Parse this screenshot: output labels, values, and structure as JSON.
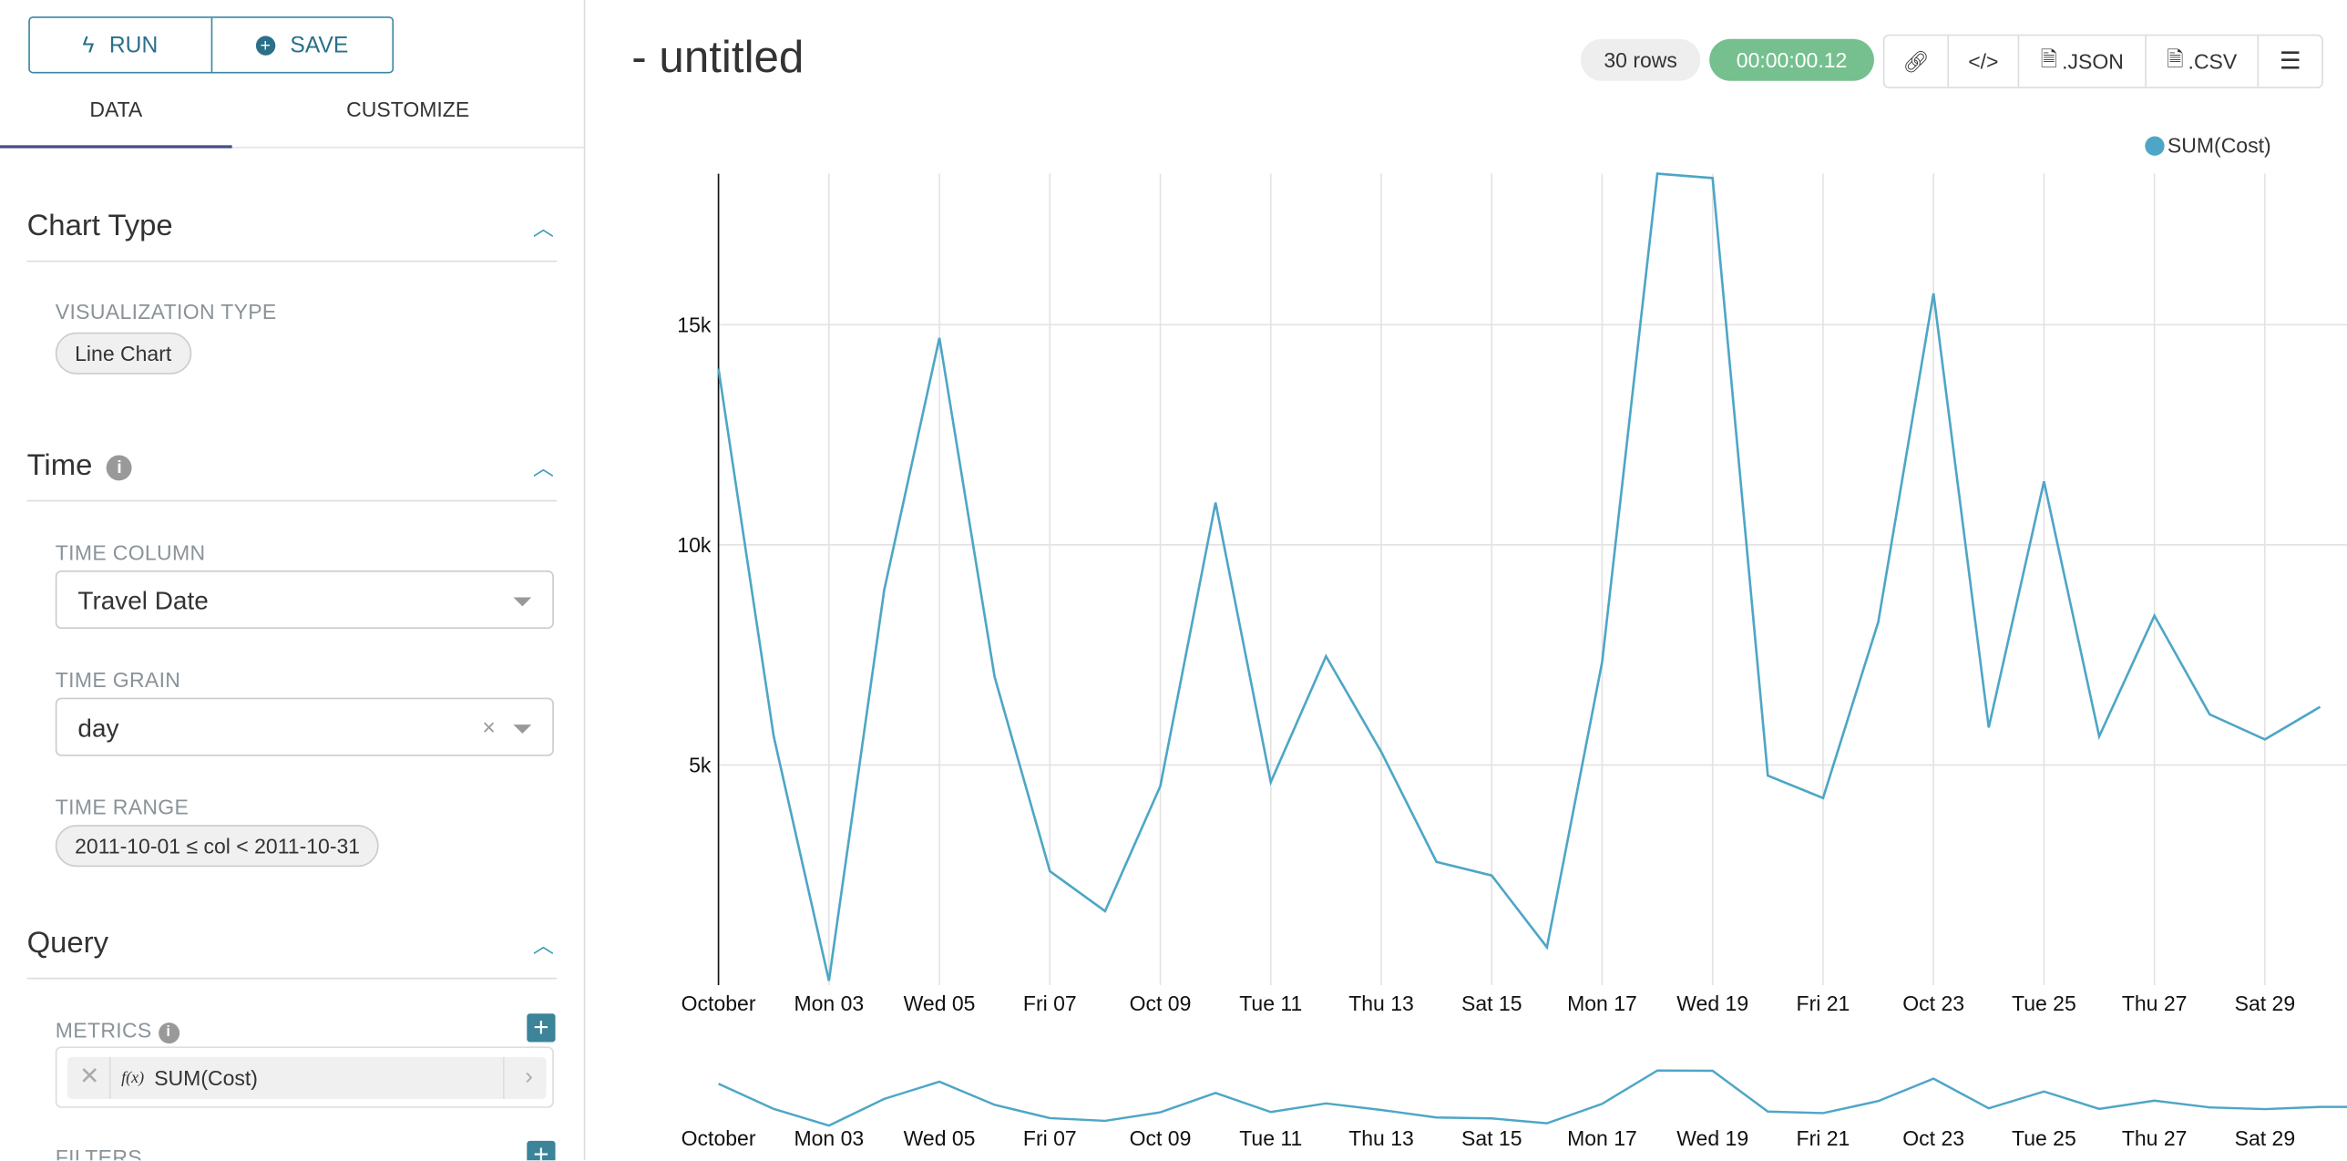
{
  "toolbar": {
    "run_label": "RUN",
    "save_label": "SAVE"
  },
  "tabs": [
    {
      "label": "DATA",
      "active": true
    },
    {
      "label": "CUSTOMIZE",
      "active": false
    }
  ],
  "sections": {
    "chart_type": {
      "title": "Chart Type",
      "viz_label": "VISUALIZATION TYPE",
      "viz_value": "Line Chart"
    },
    "time": {
      "title": "Time",
      "column_label": "TIME COLUMN",
      "column_value": "Travel Date",
      "grain_label": "TIME GRAIN",
      "grain_value": "day",
      "range_label": "TIME RANGE",
      "range_value": "2011-10-01 ≤ col < 2011-10-31"
    },
    "query": {
      "title": "Query",
      "metrics_label": "METRICS",
      "metric_value": "SUM(Cost)",
      "metric_fx": "f(x)",
      "filters_label": "FILTERS"
    }
  },
  "header": {
    "title": "- untitled",
    "rows_badge": "30 rows",
    "timer": "00:00:00.12",
    "json_label": ".JSON",
    "csv_label": ".CSV"
  },
  "colors": {
    "accent": "#3b8499",
    "series": "#4ea6c6",
    "timer": "#75c08e",
    "tab_underline": "#484e8a"
  },
  "chart_data": {
    "type": "line",
    "legend": "top-right",
    "series": [
      {
        "name": "SUM(Cost)",
        "values": [
          14000,
          5650,
          100,
          8970,
          14700,
          7000,
          2590,
          1680,
          4520,
          10960,
          4610,
          7470,
          5300,
          2800,
          2490,
          860,
          7340,
          18430,
          18330,
          4760,
          4250,
          8250,
          15710,
          5850,
          11440,
          5650,
          8390,
          6150,
          5580,
          6320
        ]
      }
    ],
    "x": [
      "2011-10-01",
      "2011-10-02",
      "2011-10-03",
      "2011-10-04",
      "2011-10-05",
      "2011-10-06",
      "2011-10-07",
      "2011-10-08",
      "2011-10-09",
      "2011-10-10",
      "2011-10-11",
      "2011-10-12",
      "2011-10-13",
      "2011-10-14",
      "2011-10-15",
      "2011-10-16",
      "2011-10-17",
      "2011-10-18",
      "2011-10-19",
      "2011-10-20",
      "2011-10-21",
      "2011-10-22",
      "2011-10-23",
      "2011-10-24",
      "2011-10-25",
      "2011-10-26",
      "2011-10-27",
      "2011-10-28",
      "2011-10-29",
      "2011-10-30"
    ],
    "x_tick_labels": [
      "October",
      "Mon 03",
      "Wed 05",
      "Fri 07",
      "Oct 09",
      "Tue 11",
      "Thu 13",
      "Sat 15",
      "Mon 17",
      "Wed 19",
      "Fri 21",
      "Oct 23",
      "Tue 25",
      "Thu 27",
      "Sat 29"
    ],
    "y_ticks": [
      5000,
      10000,
      15000
    ],
    "y_tick_labels": [
      "5k",
      "10k",
      "15k"
    ],
    "ylim": [
      0,
      18430
    ],
    "grid": true,
    "brush": true
  }
}
